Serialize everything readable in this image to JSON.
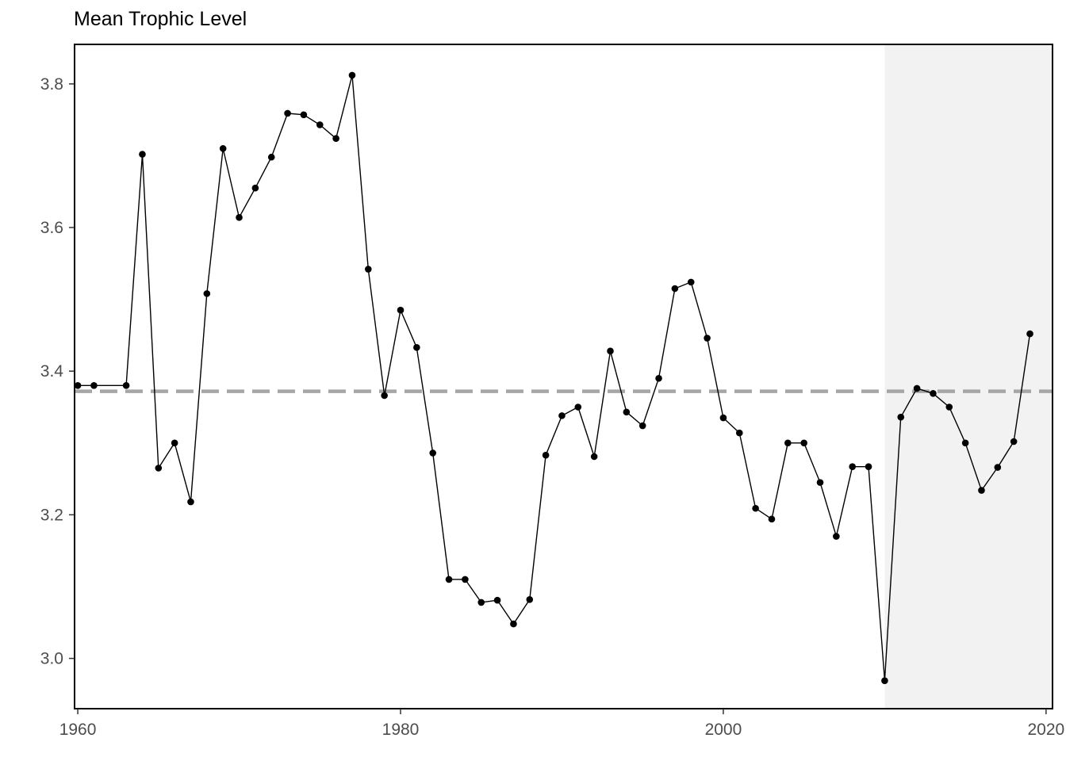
{
  "chart_data": {
    "type": "line",
    "title": "Mean Trophic Level",
    "xlabel": "",
    "ylabel": "",
    "xlim": [
      1959.8,
      2020.4
    ],
    "ylim": [
      2.93,
      3.855
    ],
    "x_ticks": [
      1960,
      1980,
      2000,
      2020
    ],
    "x_tick_labels": [
      "1960",
      "1980",
      "2000",
      "2020"
    ],
    "y_ticks": [
      3.0,
      3.2,
      3.4,
      3.6,
      3.8
    ],
    "y_tick_labels": [
      "3.0",
      "3.2",
      "3.4",
      "3.6",
      "3.8"
    ],
    "grid": false,
    "reference_line": {
      "y": 3.372,
      "style": "dashed",
      "color": "#a6a6a6"
    },
    "shaded_region": {
      "x_start": 2010,
      "x_end": 2020.4,
      "color": "#f2f2f2"
    },
    "series": [
      {
        "color": "#000000",
        "x": [
          1960,
          1961,
          1963,
          1964,
          1965,
          1966,
          1967,
          1968,
          1969,
          1970,
          1971,
          1972,
          1973,
          1974,
          1975,
          1976,
          1977,
          1978,
          1979,
          1980,
          1981,
          1982,
          1983,
          1984,
          1985,
          1986,
          1987,
          1988,
          1989,
          1990,
          1991,
          1992,
          1993,
          1994,
          1995,
          1996,
          1997,
          1998,
          1999,
          2000,
          2001,
          2002,
          2003,
          2004,
          2005,
          2006,
          2007,
          2008,
          2009,
          2010,
          2011,
          2012,
          2013,
          2014,
          2015,
          2016,
          2017,
          2018,
          2019
        ],
        "y": [
          3.38,
          3.38,
          3.38,
          3.702,
          3.265,
          3.3,
          3.218,
          3.508,
          3.71,
          3.614,
          3.655,
          3.698,
          3.759,
          3.757,
          3.743,
          3.724,
          3.812,
          3.542,
          3.366,
          3.485,
          3.433,
          3.286,
          3.11,
          3.11,
          3.078,
          3.081,
          3.048,
          3.082,
          3.283,
          3.338,
          3.35,
          3.281,
          3.428,
          3.343,
          3.324,
          3.39,
          3.515,
          3.524,
          3.446,
          3.335,
          3.314,
          3.209,
          3.194,
          3.3,
          3.3,
          3.245,
          3.17,
          3.267,
          3.267,
          2.969,
          3.336,
          3.376,
          3.369,
          3.35,
          3.3,
          3.234,
          3.266,
          3.302,
          3.452
        ]
      }
    ]
  }
}
